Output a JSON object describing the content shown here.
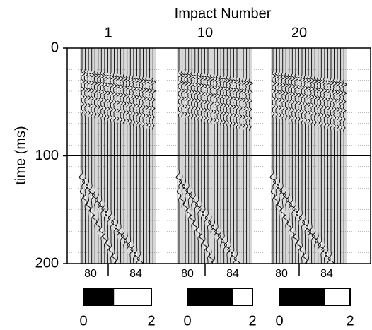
{
  "figure": {
    "title": "Impact Number",
    "y_label": "time (ms)",
    "ylim": [
      0,
      200
    ],
    "yticks": [
      0,
      100,
      200
    ],
    "bar_lim": [
      0,
      2
    ],
    "panels": [
      {
        "label": "1",
        "xticks": [
          80,
          84
        ],
        "bar_fill": 0.9,
        "bar_ticks": [
          0,
          2
        ]
      },
      {
        "label": "10",
        "xticks": [
          80,
          84
        ],
        "bar_fill": 1.4,
        "bar_ticks": [
          0,
          2
        ]
      },
      {
        "label": "20",
        "xticks": [
          80,
          84
        ],
        "bar_fill": 1.3,
        "bar_ticks": [
          0,
          2
        ]
      }
    ]
  }
}
